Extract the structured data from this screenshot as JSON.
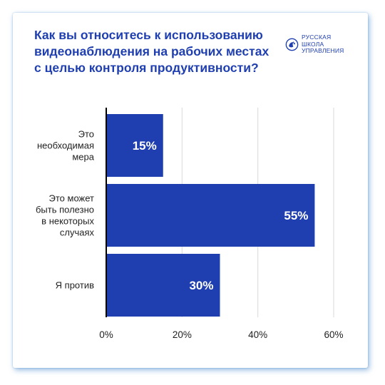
{
  "title": "Как вы относитесь к использованию видеонаблюдения на рабочих местах с целью контроля продуктивности?",
  "logo": {
    "icon": "globe-seal-icon",
    "lines": [
      "РУССКАЯ",
      "ШКОЛА",
      "УПРАВЛЕНИЯ"
    ]
  },
  "colors": {
    "bar": "#1f3fb0",
    "title": "#1f3fb0",
    "grid": "#d9d9d9",
    "axis": "#000000"
  },
  "chart_data": {
    "type": "bar",
    "orientation": "horizontal",
    "categories": [
      [
        "Это",
        "необходимая",
        "мера"
      ],
      [
        "Это может",
        "быть полезно",
        "в некоторых",
        "случаях"
      ],
      [
        "Я против"
      ]
    ],
    "values": [
      15,
      55,
      30
    ],
    "data_labels": [
      "15%",
      "55%",
      "30%"
    ],
    "xlim": [
      0,
      60
    ],
    "xticks": [
      0,
      20,
      40,
      60
    ],
    "xtick_labels": [
      "0%",
      "20%",
      "40%",
      "60%"
    ],
    "grid": true,
    "legend": "none"
  }
}
